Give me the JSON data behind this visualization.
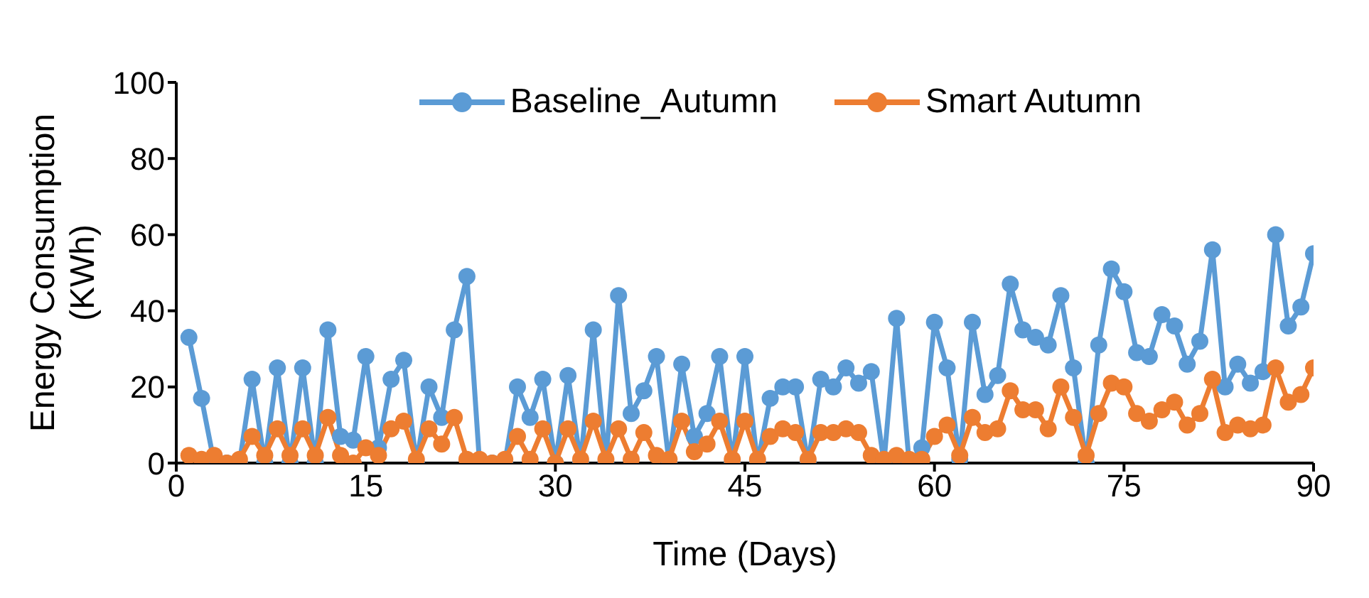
{
  "chart_data": {
    "type": "line",
    "xlabel": "Time (Days)",
    "ylabel": "Energy Consumption (KWh)",
    "x": [
      1,
      2,
      3,
      4,
      5,
      6,
      7,
      8,
      9,
      10,
      11,
      12,
      13,
      14,
      15,
      16,
      17,
      18,
      19,
      20,
      21,
      22,
      23,
      24,
      25,
      26,
      27,
      28,
      29,
      30,
      31,
      32,
      33,
      34,
      35,
      36,
      37,
      38,
      39,
      40,
      41,
      42,
      43,
      44,
      45,
      46,
      47,
      48,
      49,
      50,
      51,
      52,
      53,
      54,
      55,
      56,
      57,
      58,
      59,
      60,
      61,
      62,
      63,
      64,
      65,
      66,
      67,
      68,
      69,
      70,
      71,
      72,
      73,
      74,
      75,
      76,
      77,
      78,
      79,
      80,
      81,
      82,
      83,
      84,
      85,
      86,
      87,
      88,
      89,
      90
    ],
    "series": [
      {
        "name": "Baseline_Autumn",
        "color": "#5b9bd5",
        "values": [
          33,
          17,
          0,
          0,
          0,
          22,
          0,
          25,
          0,
          25,
          0,
          35,
          7,
          6,
          28,
          4,
          22,
          27,
          0,
          20,
          12,
          35,
          49,
          0,
          0,
          0,
          20,
          12,
          22,
          0,
          23,
          0,
          35,
          0,
          44,
          13,
          19,
          28,
          0,
          26,
          7,
          13,
          28,
          0,
          28,
          0,
          17,
          20,
          20,
          0,
          22,
          20,
          25,
          21,
          24,
          0,
          38,
          0,
          4,
          37,
          25,
          1,
          37,
          18,
          23,
          47,
          35,
          33,
          31,
          44,
          25,
          0,
          31,
          51,
          45,
          29,
          28,
          39,
          36,
          26,
          32,
          56,
          20,
          26,
          21,
          24,
          60,
          36,
          41,
          55
        ]
      },
      {
        "name": "Smart Autumn",
        "color": "#ed7d31",
        "values": [
          2,
          1,
          2,
          0,
          1,
          7,
          2,
          9,
          2,
          9,
          2,
          12,
          2,
          0,
          4,
          2,
          9,
          11,
          1,
          9,
          5,
          12,
          1,
          1,
          0,
          1,
          7,
          1,
          9,
          0,
          9,
          1,
          11,
          1,
          9,
          1,
          8,
          2,
          1,
          11,
          3,
          5,
          11,
          1,
          11,
          1,
          7,
          9,
          8,
          1,
          8,
          8,
          9,
          8,
          2,
          1,
          2,
          1,
          1,
          7,
          10,
          2,
          12,
          8,
          9,
          19,
          14,
          14,
          9,
          20,
          12,
          2,
          13,
          21,
          20,
          13,
          11,
          14,
          16,
          10,
          13,
          22,
          8,
          10,
          9,
          10,
          25,
          16,
          18,
          25
        ]
      }
    ],
    "xlim": [
      0,
      90
    ],
    "xticks": [
      0,
      15,
      30,
      45,
      60,
      75,
      90
    ],
    "ylim": [
      0,
      100
    ],
    "yticks": [
      0,
      20,
      40,
      60,
      80,
      100
    ],
    "grid": false,
    "legend": "top",
    "marker": "circle",
    "line_style": "solid"
  }
}
